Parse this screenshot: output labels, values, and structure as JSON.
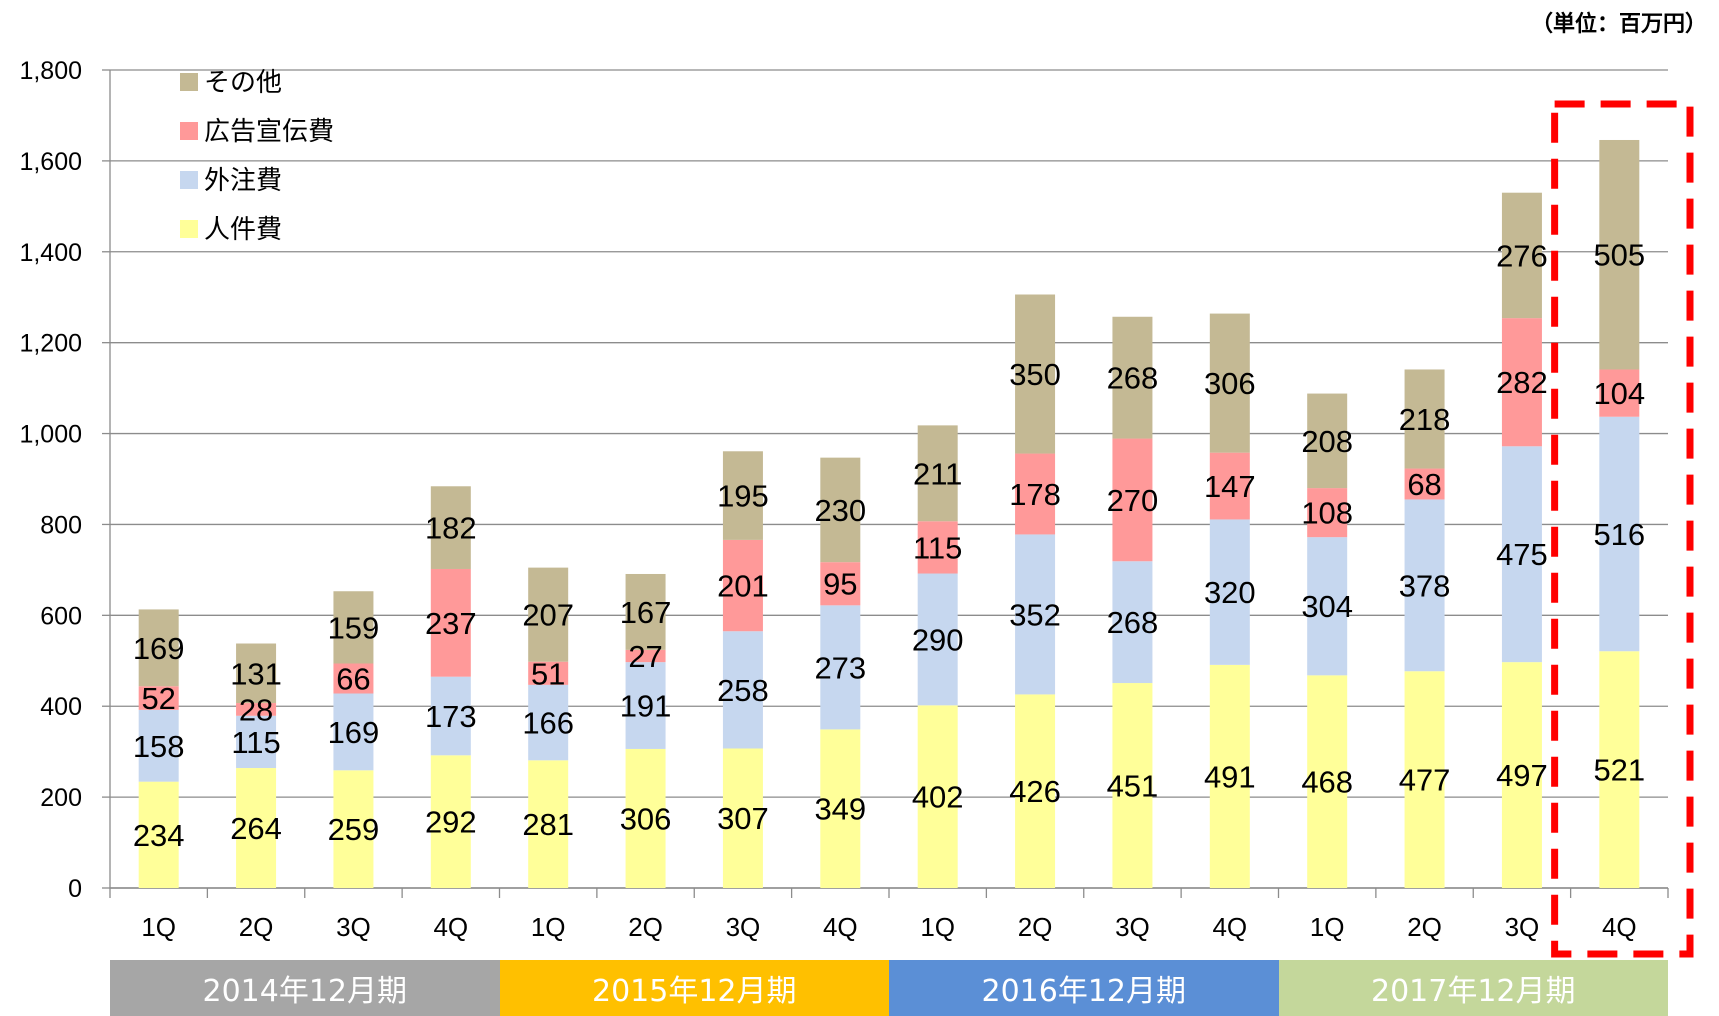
{
  "unit_label": "（単位：百万円）",
  "periods": [
    {
      "label": "2014年12月期",
      "color": "#a6a6a6"
    },
    {
      "label": "2015年12月期",
      "color": "#ffc000"
    },
    {
      "label": "2016年12月期",
      "color": "#5b8fd6"
    },
    {
      "label": "2017年12月期",
      "color": "#c4d79b"
    }
  ],
  "chart_data": {
    "type": "bar",
    "stacked": true,
    "categories": [
      "1Q",
      "2Q",
      "3Q",
      "4Q",
      "1Q",
      "2Q",
      "3Q",
      "4Q",
      "1Q",
      "2Q",
      "3Q",
      "4Q",
      "1Q",
      "2Q",
      "3Q",
      "4Q"
    ],
    "series": [
      {
        "name": "人件費",
        "color": "#ffff99",
        "values": [
          234,
          264,
          259,
          292,
          281,
          306,
          307,
          349,
          402,
          426,
          451,
          491,
          468,
          477,
          497,
          521
        ]
      },
      {
        "name": "外注費",
        "color": "#c6d7ef",
        "values": [
          158,
          115,
          169,
          173,
          166,
          191,
          258,
          273,
          290,
          352,
          268,
          320,
          304,
          378,
          475,
          516
        ]
      },
      {
        "name": "広告宣伝費",
        "color": "#ff9999",
        "values": [
          52,
          28,
          66,
          237,
          51,
          27,
          201,
          95,
          115,
          178,
          270,
          147,
          108,
          68,
          282,
          104
        ]
      },
      {
        "name": "その他",
        "color": "#c4b994",
        "values": [
          169,
          131,
          159,
          182,
          207,
          167,
          195,
          230,
          211,
          350,
          268,
          306,
          208,
          218,
          276,
          505
        ]
      }
    ],
    "legend_order": [
      "その他",
      "広告宣伝費",
      "外注費",
      "人件費"
    ],
    "yticks": [
      "0",
      "200",
      "400",
      "600",
      "800",
      "1,000",
      "1,200",
      "1,400",
      "1,600",
      "1,800"
    ],
    "ylim": [
      0,
      1800
    ],
    "grid": true,
    "legend_position": "top-left",
    "highlight_index": 15,
    "highlight_color": "#ff0000"
  }
}
